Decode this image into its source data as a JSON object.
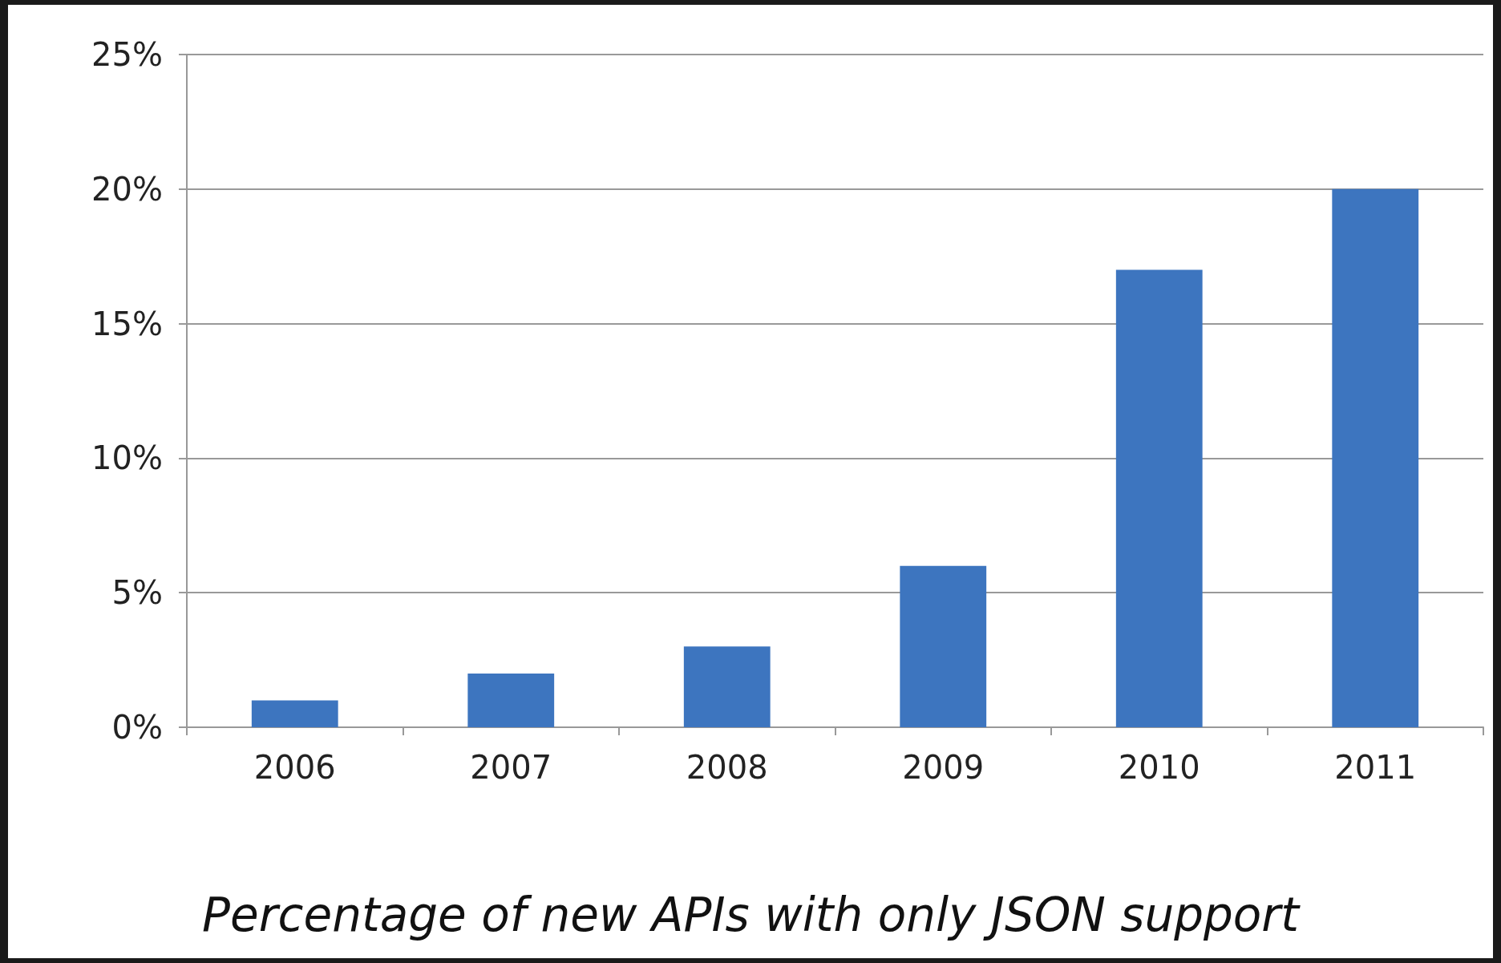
{
  "chart_data": {
    "type": "bar",
    "title": "Percentage of new APIs with only JSON support",
    "categories": [
      "2006",
      "2007",
      "2008",
      "2009",
      "2010",
      "2011"
    ],
    "values": [
      1,
      2,
      3,
      6,
      17,
      20
    ],
    "color": "#3d75bf",
    "ylim": [
      0,
      25
    ],
    "yticks": [
      {
        "value": 0,
        "label": "0%"
      },
      {
        "value": 5,
        "label": "5%"
      },
      {
        "value": 10,
        "label": "10%"
      },
      {
        "value": 15,
        "label": "15%"
      },
      {
        "value": 20,
        "label": "20%"
      },
      {
        "value": 25,
        "label": "25%"
      }
    ],
    "grid": "y"
  }
}
